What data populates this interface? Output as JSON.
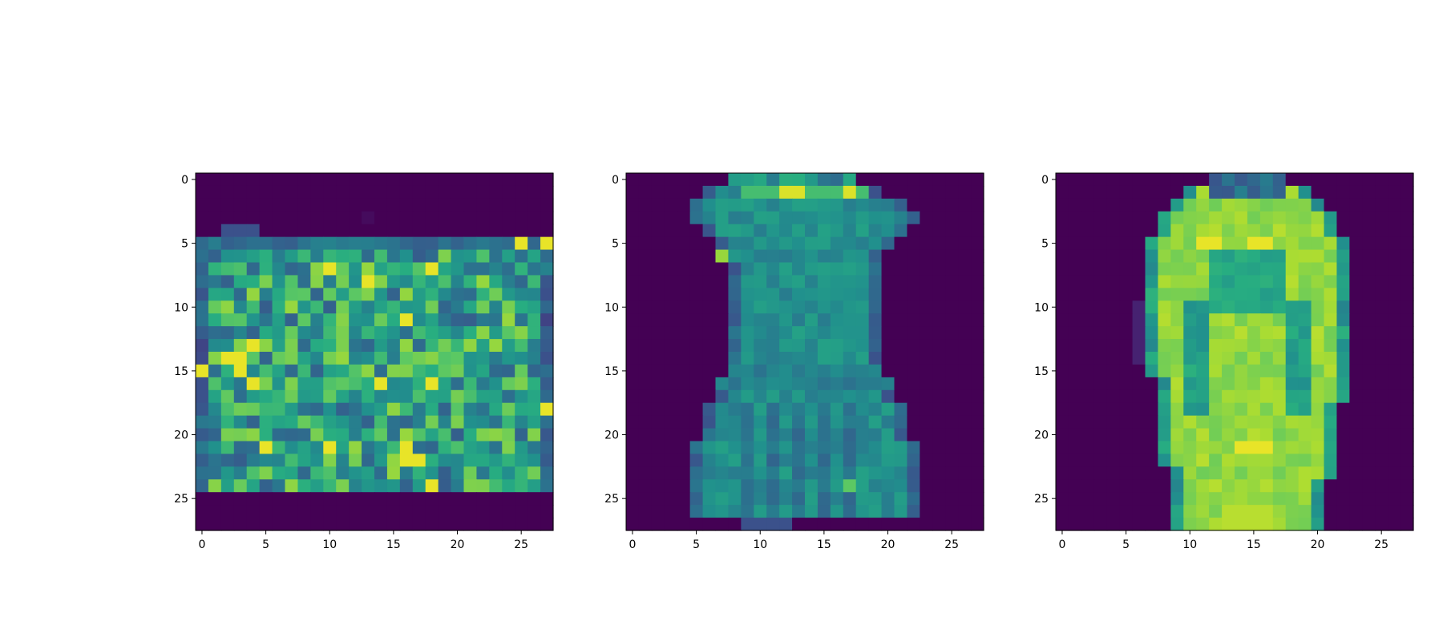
{
  "chart_data": [
    {
      "type": "heatmap",
      "title": "",
      "xlabel": "",
      "ylabel": "",
      "grid": false,
      "colormap": "viridis",
      "shape": [
        28,
        28
      ],
      "xlim": [
        -0.5,
        27.5
      ],
      "ylim": [
        27.5,
        -0.5
      ],
      "xticks": [
        0,
        5,
        10,
        15,
        20,
        25
      ],
      "yticks": [
        0,
        5,
        10,
        15,
        20,
        25
      ],
      "value_range": [
        0,
        1
      ],
      "description_values": {
        "background": 0.0,
        "mottled_region_rows": [
          5,
          24
        ],
        "mottled_region_cols": [
          0,
          27
        ],
        "mottled_value_range": [
          0.25,
          0.95
        ]
      }
    },
    {
      "type": "heatmap",
      "title": "",
      "xlabel": "",
      "ylabel": "",
      "grid": false,
      "colormap": "viridis",
      "shape": [
        28,
        28
      ],
      "xlim": [
        -0.5,
        27.5
      ],
      "ylim": [
        27.5,
        -0.5
      ],
      "xticks": [
        0,
        5,
        10,
        15,
        20,
        25
      ],
      "yticks": [
        0,
        5,
        10,
        15,
        20,
        25
      ],
      "value_range": [
        0,
        1
      ]
    },
    {
      "type": "heatmap",
      "title": "",
      "xlabel": "",
      "ylabel": "",
      "grid": false,
      "colormap": "viridis",
      "shape": [
        28,
        28
      ],
      "xlim": [
        -0.5,
        27.5
      ],
      "ylim": [
        27.5,
        -0.5
      ],
      "xticks": [
        0,
        5,
        10,
        15,
        20,
        25
      ],
      "yticks": [
        0,
        5,
        10,
        15,
        20,
        25
      ],
      "value_range": [
        0,
        1
      ]
    }
  ]
}
